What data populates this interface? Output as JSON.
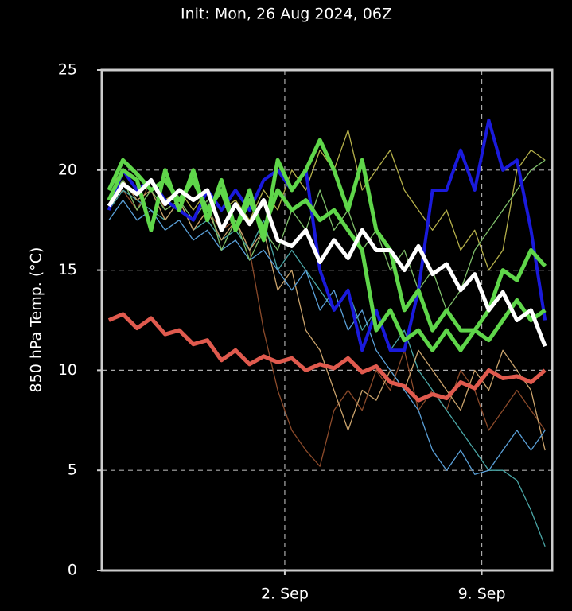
{
  "chart_data": {
    "type": "line",
    "title": "Init: Mon, 26 Aug 2024, 06Z",
    "y_label": "850 hPa Temp. (°C)",
    "x": [
      0.75,
      1.25,
      1.75,
      2.25,
      2.75,
      3.25,
      3.75,
      4.25,
      4.75,
      5.25,
      5.75,
      6.25,
      6.75,
      7.25,
      7.75,
      8.25,
      8.75,
      9.25,
      9.75,
      10.25,
      10.75,
      11.25,
      11.75,
      12.25,
      12.75,
      13.25,
      13.75,
      14.25,
      14.75,
      15.25,
      15.75,
      16.25
    ],
    "xlim": [
      0.5,
      16.5
    ],
    "xticks": [
      {
        "value": 7,
        "label": "2. Sep"
      },
      {
        "value": 14,
        "label": "9. Sep"
      }
    ],
    "ylim": [
      0,
      25
    ],
    "yticks": [
      0,
      5,
      10,
      15,
      20,
      25
    ],
    "grid": true,
    "series": [
      {
        "color": "#8b4a2a",
        "width": 1.3,
        "values": [
          18.5,
          19,
          18,
          19.5,
          18,
          18.5,
          17,
          18,
          17,
          17.5,
          16,
          12,
          9,
          7,
          6,
          5.2,
          8,
          9,
          8,
          10,
          9,
          11,
          8,
          9,
          8,
          10,
          9,
          7,
          8,
          9,
          8,
          7
        ]
      },
      {
        "color": "#4aa6a6",
        "width": 1.3,
        "values": [
          18,
          19,
          18.5,
          18,
          17.5,
          18.5,
          17,
          17.5,
          16.5,
          17,
          16,
          17.5,
          15,
          16,
          15,
          14,
          13,
          14,
          12,
          13,
          11,
          12,
          10,
          9,
          8,
          7,
          6,
          5,
          5,
          4.5,
          3,
          1.2
        ]
      },
      {
        "color": "#b5b04a",
        "width": 1.3,
        "values": [
          19,
          20,
          19,
          19.5,
          18.5,
          19,
          18,
          19,
          18,
          18.5,
          17.5,
          19,
          18,
          20,
          19,
          21,
          20,
          22,
          19,
          20,
          21,
          19,
          18,
          17,
          18,
          16,
          17,
          15,
          16,
          20,
          21,
          20.5
        ]
      },
      {
        "color": "#c9a26b",
        "width": 1.3,
        "values": [
          18,
          19.5,
          18.5,
          19,
          17.5,
          18.5,
          17,
          18,
          16.5,
          17.5,
          16,
          17,
          14,
          15,
          12,
          11,
          9,
          7,
          9,
          8.5,
          10,
          9,
          11,
          10,
          9,
          8,
          10,
          9,
          11,
          10,
          9,
          6
        ]
      },
      {
        "color": "#5aa0d8",
        "width": 1.3,
        "values": [
          17.5,
          18.5,
          17.5,
          18,
          17,
          17.5,
          16.5,
          17,
          16,
          16.5,
          15.5,
          16,
          15,
          14,
          15,
          13,
          14,
          12,
          13,
          11,
          10,
          9,
          8,
          6,
          5,
          6,
          4.8,
          5,
          6,
          7,
          6,
          7
        ]
      },
      {
        "color": "#7fbf6a",
        "width": 1.3,
        "values": [
          18.5,
          19.5,
          18,
          19,
          18,
          18.5,
          17.5,
          18.5,
          16,
          17.5,
          15.5,
          17,
          16,
          18,
          17,
          19,
          17,
          18,
          16,
          17,
          15,
          16,
          14,
          15,
          13,
          14,
          16,
          17,
          18,
          19,
          20,
          20.5
        ]
      },
      {
        "color": "#e05a4e",
        "width": 5,
        "values": [
          12.5,
          12.8,
          12.1,
          12.6,
          11.8,
          12,
          11.3,
          11.5,
          10.5,
          11,
          10.3,
          10.7,
          10.4,
          10.6,
          10,
          10.3,
          10.1,
          10.6,
          9.9,
          10.2,
          9.4,
          9.2,
          8.5,
          8.8,
          8.6,
          9.4,
          9.1,
          10,
          9.6,
          9.7,
          9.4,
          10
        ]
      },
      {
        "color": "#1a1adc",
        "width": 4,
        "values": [
          18,
          20,
          19,
          19.5,
          18.5,
          18,
          17.5,
          19,
          18,
          19,
          18,
          19.5,
          20,
          19,
          20,
          15,
          13,
          14,
          11,
          13,
          11,
          11,
          14,
          19,
          19,
          21,
          19,
          22.5,
          20,
          20.5,
          17,
          12.5
        ]
      },
      {
        "color": "#5fd64a",
        "width": 5,
        "values": [
          18.5,
          20,
          19.5,
          17,
          20,
          18,
          20,
          17.5,
          19.5,
          17,
          19,
          16.5,
          20.5,
          19,
          20,
          21.5,
          20,
          18,
          20.5,
          17,
          16,
          13,
          14,
          12,
          13,
          12,
          12,
          13,
          15,
          14.5,
          16,
          15.2
        ]
      },
      {
        "color": "#5fd64a",
        "width": 5,
        "values": [
          19,
          20.5,
          19.8,
          19,
          19.5,
          18.5,
          19.5,
          18,
          19,
          17,
          18.5,
          17,
          19,
          18,
          18.5,
          17.5,
          18,
          17,
          16,
          12,
          13,
          11.5,
          12,
          11,
          12,
          11,
          12,
          11.5,
          12.5,
          13.5,
          12.5,
          13
        ]
      },
      {
        "color": "#ffffff",
        "width": 5,
        "values": [
          18.2,
          19.3,
          18.8,
          19.5,
          18.3,
          19,
          18.5,
          19,
          17,
          18.3,
          17.3,
          18.5,
          16.5,
          16.2,
          17,
          15.4,
          16.5,
          15.6,
          17,
          16,
          16,
          15,
          16.2,
          14.8,
          15.3,
          14,
          14.8,
          13,
          13.9,
          12.5,
          13,
          11.2
        ]
      }
    ]
  }
}
